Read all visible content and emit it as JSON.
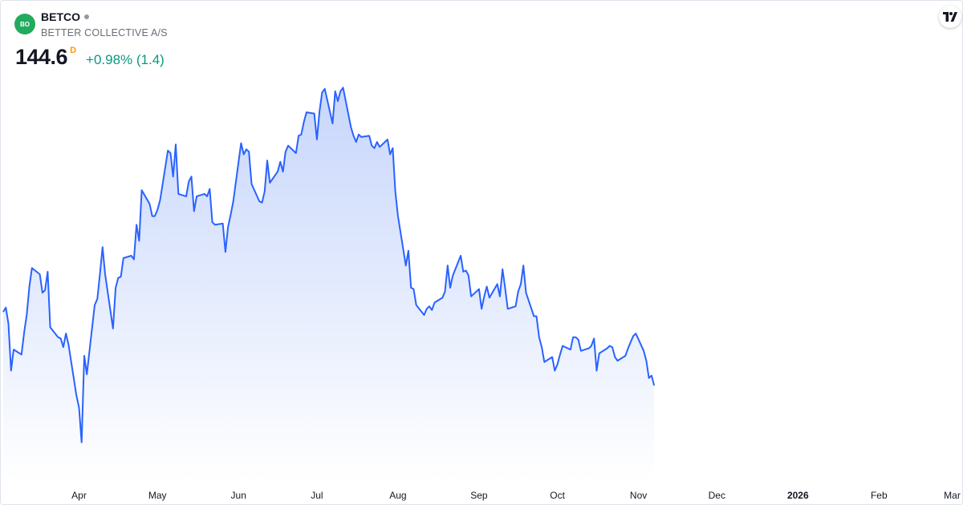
{
  "header": {
    "logo_text": "BO",
    "ticker": "BETCO",
    "company": "BETTER COLLECTIVE A/S",
    "price": "144.6",
    "price_flag": "D",
    "change": "+0.98% (1.4)"
  },
  "colors": {
    "line": "#2962ff",
    "area_top": "#c7d6fb",
    "area_bottom": "#ffffff",
    "positive": "#089981",
    "logo": "#22ab5f",
    "flag": "#ff9800"
  },
  "chart_data": {
    "type": "area",
    "title": "BETCO",
    "xlabel": "",
    "ylabel": "",
    "x_range": [
      "2025-03-03",
      "2026-03-03"
    ],
    "ylim": [
      86,
      148
    ],
    "grid": false,
    "x_ticks": [
      {
        "date": "2025-04-01",
        "label": "Apr",
        "bold": false
      },
      {
        "date": "2025-05-01",
        "label": "May",
        "bold": false
      },
      {
        "date": "2025-06-01",
        "label": "Jun",
        "bold": false
      },
      {
        "date": "2025-07-01",
        "label": "Jul",
        "bold": false
      },
      {
        "date": "2025-08-01",
        "label": "Aug",
        "bold": false
      },
      {
        "date": "2025-09-01",
        "label": "Sep",
        "bold": false
      },
      {
        "date": "2025-10-01",
        "label": "Oct",
        "bold": false
      },
      {
        "date": "2025-11-01",
        "label": "Nov",
        "bold": false
      },
      {
        "date": "2025-12-01",
        "label": "Dec",
        "bold": false
      },
      {
        "date": "2026-01-01",
        "label": "2026",
        "bold": true
      },
      {
        "date": "2026-02-01",
        "label": "Feb",
        "bold": false
      },
      {
        "date": "2026-03-01",
        "label": "Mar",
        "bold": false
      }
    ],
    "series": [
      {
        "points": [
          [
            "2025-03-03",
            110.5
          ],
          [
            "2025-03-04",
            111.2
          ],
          [
            "2025-03-05",
            108.6
          ],
          [
            "2025-03-06",
            101.0
          ],
          [
            "2025-03-07",
            104.4
          ],
          [
            "2025-03-10",
            103.6
          ],
          [
            "2025-03-11",
            107.2
          ],
          [
            "2025-03-12",
            110.0
          ],
          [
            "2025-03-13",
            114.6
          ],
          [
            "2025-03-14",
            117.6
          ],
          [
            "2025-03-17",
            116.6
          ],
          [
            "2025-03-18",
            113.6
          ],
          [
            "2025-03-19",
            114.0
          ],
          [
            "2025-03-20",
            117.0
          ],
          [
            "2025-03-21",
            108.0
          ],
          [
            "2025-03-24",
            106.4
          ],
          [
            "2025-03-25",
            106.2
          ],
          [
            "2025-03-26",
            104.8
          ],
          [
            "2025-03-27",
            107.0
          ],
          [
            "2025-03-28",
            105.2
          ],
          [
            "2025-03-31",
            97.0
          ],
          [
            "2025-04-01",
            95.0
          ],
          [
            "2025-04-02",
            89.4
          ],
          [
            "2025-04-03",
            103.4
          ],
          [
            "2025-04-04",
            100.4
          ],
          [
            "2025-04-07",
            111.6
          ],
          [
            "2025-04-08",
            112.6
          ],
          [
            "2025-04-09",
            116.6
          ],
          [
            "2025-04-10",
            121.0
          ],
          [
            "2025-04-11",
            116.6
          ],
          [
            "2025-04-14",
            107.8
          ],
          [
            "2025-04-15",
            114.4
          ],
          [
            "2025-04-16",
            116.0
          ],
          [
            "2025-04-17",
            116.2
          ],
          [
            "2025-04-18",
            119.2
          ],
          [
            "2025-04-21",
            119.6
          ],
          [
            "2025-04-22",
            119.0
          ],
          [
            "2025-04-23",
            124.6
          ],
          [
            "2025-04-24",
            122.0
          ],
          [
            "2025-04-25",
            130.2
          ],
          [
            "2025-04-28",
            128.0
          ],
          [
            "2025-04-29",
            126.0
          ],
          [
            "2025-04-30",
            126.0
          ],
          [
            "2025-05-01",
            127.0
          ],
          [
            "2025-05-02",
            128.6
          ],
          [
            "2025-05-05",
            136.6
          ],
          [
            "2025-05-06",
            136.2
          ],
          [
            "2025-05-07",
            132.4
          ],
          [
            "2025-05-08",
            137.6
          ],
          [
            "2025-05-09",
            129.6
          ],
          [
            "2025-05-12",
            129.2
          ],
          [
            "2025-05-13",
            131.6
          ],
          [
            "2025-05-14",
            132.4
          ],
          [
            "2025-05-15",
            126.8
          ],
          [
            "2025-05-16",
            129.2
          ],
          [
            "2025-05-19",
            129.6
          ],
          [
            "2025-05-20",
            129.2
          ],
          [
            "2025-05-21",
            130.4
          ],
          [
            "2025-05-22",
            125.0
          ],
          [
            "2025-05-23",
            124.6
          ],
          [
            "2025-05-26",
            124.8
          ],
          [
            "2025-05-27",
            120.2
          ],
          [
            "2025-05-28",
            124.2
          ],
          [
            "2025-05-29",
            126.2
          ],
          [
            "2025-05-30",
            128.4
          ],
          [
            "2025-06-02",
            137.8
          ],
          [
            "2025-06-03",
            136.0
          ],
          [
            "2025-06-04",
            136.8
          ],
          [
            "2025-06-05",
            136.4
          ],
          [
            "2025-06-06",
            131.2
          ],
          [
            "2025-06-09",
            128.4
          ],
          [
            "2025-06-10",
            128.2
          ],
          [
            "2025-06-11",
            130.0
          ],
          [
            "2025-06-12",
            135.0
          ],
          [
            "2025-06-13",
            131.4
          ],
          [
            "2025-06-16",
            133.2
          ],
          [
            "2025-06-17",
            134.8
          ],
          [
            "2025-06-18",
            133.2
          ],
          [
            "2025-06-19",
            136.4
          ],
          [
            "2025-06-20",
            137.4
          ],
          [
            "2025-06-23",
            136.2
          ],
          [
            "2025-06-24",
            139.0
          ],
          [
            "2025-06-25",
            139.2
          ],
          [
            "2025-06-26",
            141.2
          ],
          [
            "2025-06-27",
            142.8
          ],
          [
            "2025-06-30",
            142.6
          ],
          [
            "2025-07-01",
            138.4
          ],
          [
            "2025-07-02",
            143.0
          ],
          [
            "2025-07-03",
            146.0
          ],
          [
            "2025-07-04",
            146.6
          ],
          [
            "2025-07-07",
            141.0
          ],
          [
            "2025-07-08",
            146.2
          ],
          [
            "2025-07-09",
            144.6
          ],
          [
            "2025-07-10",
            146.2
          ],
          [
            "2025-07-11",
            146.8
          ],
          [
            "2025-07-14",
            140.4
          ],
          [
            "2025-07-15",
            139.0
          ],
          [
            "2025-07-16",
            138.0
          ],
          [
            "2025-07-17",
            139.2
          ],
          [
            "2025-07-18",
            138.8
          ],
          [
            "2025-07-21",
            139.0
          ],
          [
            "2025-07-22",
            137.4
          ],
          [
            "2025-07-23",
            137.0
          ],
          [
            "2025-07-24",
            138.0
          ],
          [
            "2025-07-25",
            137.2
          ],
          [
            "2025-07-28",
            138.4
          ],
          [
            "2025-07-29",
            136.0
          ],
          [
            "2025-07-30",
            137.0
          ],
          [
            "2025-07-31",
            130.0
          ],
          [
            "2025-08-01",
            126.0
          ],
          [
            "2025-08-04",
            118.0
          ],
          [
            "2025-08-05",
            120.4
          ],
          [
            "2025-08-06",
            114.4
          ],
          [
            "2025-08-07",
            114.2
          ],
          [
            "2025-08-08",
            111.6
          ],
          [
            "2025-08-11",
            110.0
          ],
          [
            "2025-08-12",
            111.0
          ],
          [
            "2025-08-13",
            111.4
          ],
          [
            "2025-08-14",
            110.8
          ],
          [
            "2025-08-15",
            112.0
          ],
          [
            "2025-08-18",
            112.8
          ],
          [
            "2025-08-19",
            113.8
          ],
          [
            "2025-08-20",
            118.0
          ],
          [
            "2025-08-21",
            114.4
          ],
          [
            "2025-08-22",
            116.4
          ],
          [
            "2025-08-25",
            119.6
          ],
          [
            "2025-08-26",
            117.0
          ],
          [
            "2025-08-27",
            117.2
          ],
          [
            "2025-08-28",
            116.4
          ],
          [
            "2025-08-29",
            113.0
          ],
          [
            "2025-09-01",
            114.2
          ],
          [
            "2025-09-02",
            111.0
          ],
          [
            "2025-09-03",
            113.0
          ],
          [
            "2025-09-04",
            114.6
          ],
          [
            "2025-09-05",
            112.8
          ],
          [
            "2025-09-08",
            115.0
          ],
          [
            "2025-09-09",
            113.0
          ],
          [
            "2025-09-10",
            117.4
          ],
          [
            "2025-09-11",
            114.4
          ],
          [
            "2025-09-12",
            111.0
          ],
          [
            "2025-09-15",
            111.4
          ],
          [
            "2025-09-16",
            113.8
          ],
          [
            "2025-09-17",
            115.0
          ],
          [
            "2025-09-18",
            118.0
          ],
          [
            "2025-09-19",
            113.6
          ],
          [
            "2025-09-22",
            109.8
          ],
          [
            "2025-09-23",
            109.8
          ],
          [
            "2025-09-24",
            106.4
          ],
          [
            "2025-09-25",
            104.8
          ],
          [
            "2025-09-26",
            102.4
          ],
          [
            "2025-09-29",
            103.2
          ],
          [
            "2025-09-30",
            101.0
          ],
          [
            "2025-10-01",
            102.0
          ],
          [
            "2025-10-02",
            103.6
          ],
          [
            "2025-10-03",
            105.0
          ],
          [
            "2025-10-06",
            104.4
          ],
          [
            "2025-10-07",
            106.4
          ],
          [
            "2025-10-08",
            106.4
          ],
          [
            "2025-10-09",
            106.0
          ],
          [
            "2025-10-10",
            104.2
          ],
          [
            "2025-10-13",
            104.6
          ],
          [
            "2025-10-14",
            105.0
          ],
          [
            "2025-10-15",
            106.2
          ],
          [
            "2025-10-16",
            101.0
          ],
          [
            "2025-10-17",
            103.8
          ],
          [
            "2025-10-20",
            104.6
          ],
          [
            "2025-10-21",
            105.0
          ],
          [
            "2025-10-22",
            104.8
          ],
          [
            "2025-10-23",
            103.2
          ],
          [
            "2025-10-24",
            102.6
          ],
          [
            "2025-10-27",
            103.4
          ],
          [
            "2025-10-28",
            104.6
          ],
          [
            "2025-10-29",
            105.6
          ],
          [
            "2025-10-30",
            106.6
          ],
          [
            "2025-10-31",
            107.0
          ],
          [
            "2025-11-03",
            104.2
          ],
          [
            "2025-11-04",
            102.6
          ],
          [
            "2025-11-05",
            99.8
          ],
          [
            "2025-11-06",
            100.2
          ],
          [
            "2025-11-07",
            98.6
          ]
        ]
      }
    ]
  }
}
